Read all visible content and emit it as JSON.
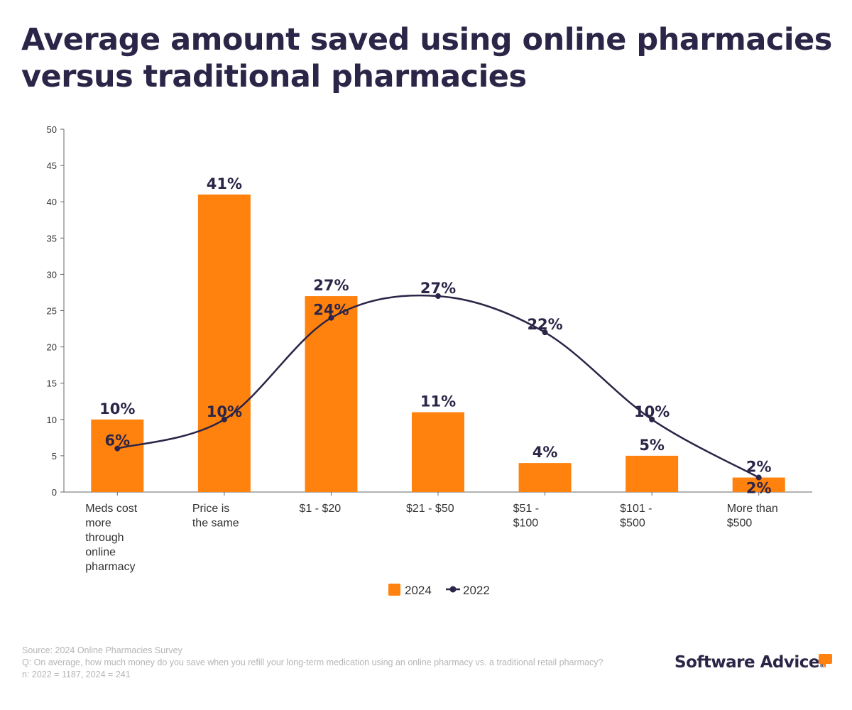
{
  "title": "Average amount saved using online pharmacies versus traditional pharmacies",
  "chart_data": {
    "type": "bar+line",
    "categories": [
      "Meds cost more through online pharmacy",
      "Price is the same",
      "$1 - $20",
      "$21 - $50",
      "$51 - $100",
      "$101 - $500",
      "More than $500"
    ],
    "series": [
      {
        "name": "2024",
        "type": "bar",
        "color": "#ff820e",
        "values": [
          10,
          41,
          27,
          11,
          4,
          5,
          2
        ],
        "labels": [
          "10%",
          "41%",
          "27%",
          "11%",
          "4%",
          "5%",
          "2%"
        ]
      },
      {
        "name": "2022",
        "type": "line",
        "color": "#2b2547",
        "values": [
          6,
          10,
          24,
          27,
          22,
          10,
          2
        ],
        "labels": [
          "6%",
          "10%",
          "24%",
          "27%",
          "22%",
          "10%",
          "2%"
        ]
      }
    ],
    "ylim": [
      0,
      50
    ],
    "yticks": [
      0,
      5,
      10,
      15,
      20,
      25,
      30,
      35,
      40,
      45,
      50
    ],
    "grid": false,
    "legend": "bottom"
  },
  "footer": {
    "source": "Source: 2024 Online Pharmacies Survey",
    "question": "Q: On average, how much money do you save when you refill your long-term medication using an online pharmacy vs. a traditional retail pharmacy?",
    "n": "n: 2022 = 1187, 2024 = 241"
  },
  "logo": "Software Advice"
}
